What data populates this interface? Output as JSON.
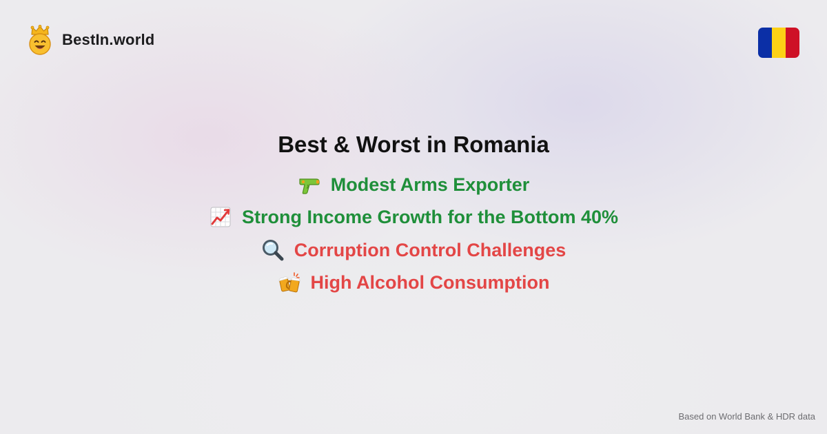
{
  "brand": {
    "name": "BestIn.world",
    "logo_icon": "crown-smiley-icon"
  },
  "flag": {
    "icon": "romania-flag-icon",
    "colors": [
      "#0b2fa6",
      "#fcd116",
      "#ce1126"
    ]
  },
  "title": "Best & Worst in Romania",
  "items": [
    {
      "icon": "water-pistol-icon",
      "label": "Modest Arms Exporter",
      "kind": "best",
      "color": "#1f8f3a"
    },
    {
      "icon": "chart-increasing-icon",
      "label": "Strong Income Growth for the Bottom 40%",
      "kind": "best",
      "color": "#1f8f3a"
    },
    {
      "icon": "magnifying-glass-icon",
      "label": "Corruption Control Challenges",
      "kind": "worst",
      "color": "#e34646"
    },
    {
      "icon": "clinking-beer-mugs-icon",
      "label": "High Alcohol Consumption",
      "kind": "worst",
      "color": "#e34646"
    }
  ],
  "footer": {
    "source_note": "Based on World Bank & HDR data"
  }
}
